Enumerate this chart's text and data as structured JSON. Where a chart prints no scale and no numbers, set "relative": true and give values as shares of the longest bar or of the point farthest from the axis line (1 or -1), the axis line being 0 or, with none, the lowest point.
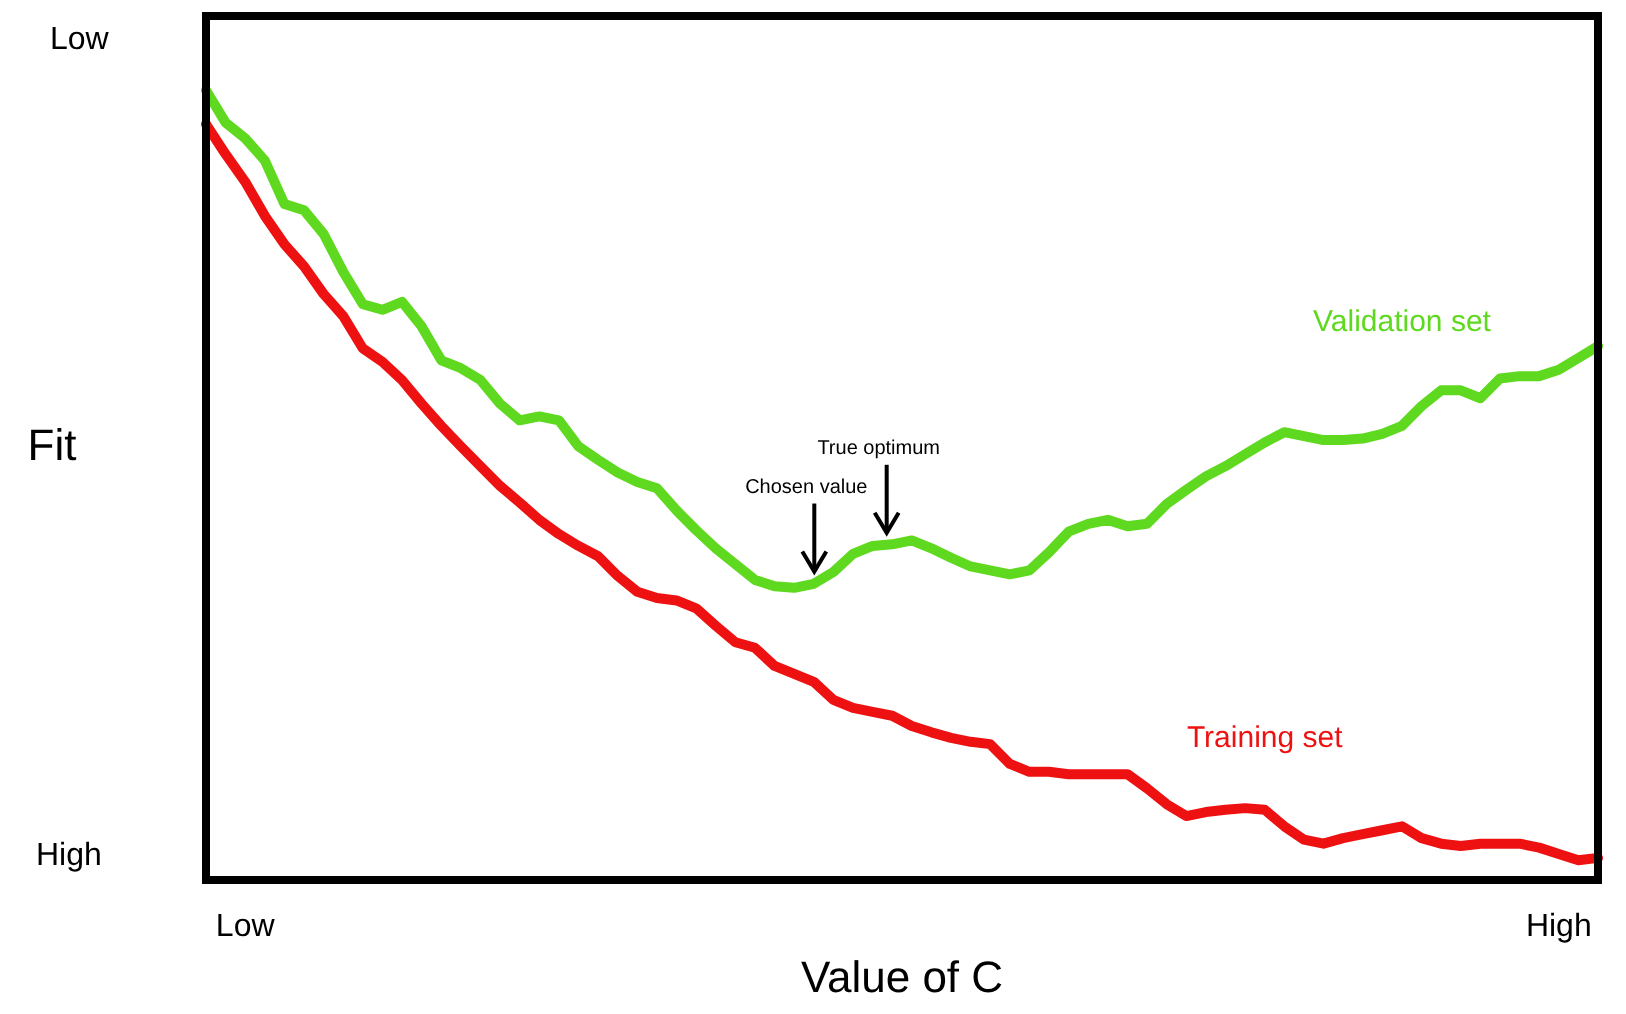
{
  "chart_data": {
    "type": "line",
    "xlabel": "Value of C",
    "ylabel": "Fit",
    "relative": true,
    "grid": false,
    "legend": false,
    "marker": "none",
    "line_style": "solid",
    "annotations": [
      "Low",
      "High",
      "Chosen value",
      "True optimum"
    ],
    "categories": [
      null,
      null,
      "Low",
      null,
      null,
      null,
      null,
      null,
      null,
      null,
      null,
      null,
      null,
      null,
      null,
      null,
      null,
      null,
      null,
      null,
      null,
      null,
      null,
      null,
      null,
      null,
      null,
      null,
      null,
      null,
      null,
      null,
      null,
      null,
      null,
      null,
      null,
      null,
      null,
      null,
      null,
      null,
      null,
      null,
      null,
      null,
      null,
      null,
      null,
      null,
      null,
      null,
      null,
      null,
      null,
      null,
      null,
      null,
      null,
      null,
      null,
      null,
      null,
      null,
      null,
      null,
      null,
      null,
      null,
      "High",
      null,
      null
    ],
    "series": [
      {
        "name": "Validation set",
        "color": "#5fd91f",
        "values": [
          1,
          0.959,
          0.939,
          0.911,
          0.856,
          0.848,
          0.818,
          0.77,
          0.729,
          0.722,
          0.732,
          0.701,
          0.658,
          0.648,
          0.633,
          0.603,
          0.582,
          0.587,
          0.582,
          0.549,
          0.532,
          0.516,
          0.504,
          0.496,
          0.468,
          0.443,
          0.42,
          0.4,
          0.38,
          0.372,
          0.37,
          0.375,
          0.39,
          0.413,
          0.423,
          0.425,
          0.43,
          0.42,
          0.408,
          0.397,
          0.392,
          0.387,
          0.392,
          0.415,
          0.441,
          0.451,
          0.456,
          0.448,
          0.451,
          0.476,
          0.494,
          0.511,
          0.524,
          0.539,
          0.554,
          0.567,
          0.562,
          0.557,
          0.557,
          0.559,
          0.565,
          0.575,
          0.6,
          0.62,
          0.62,
          0.61,
          0.635,
          0.638,
          0.638,
          0.646,
          0.661,
          0.676
        ]
      },
      {
        "name": "Training set",
        "color": "#ee1111",
        "values": [
          0.957,
          0.919,
          0.884,
          0.841,
          0.805,
          0.777,
          0.742,
          0.714,
          0.673,
          0.656,
          0.633,
          0.603,
          0.575,
          0.549,
          0.524,
          0.499,
          0.478,
          0.456,
          0.438,
          0.423,
          0.41,
          0.385,
          0.365,
          0.357,
          0.354,
          0.344,
          0.322,
          0.301,
          0.294,
          0.271,
          0.261,
          0.251,
          0.228,
          0.218,
          0.213,
          0.208,
          0.195,
          0.187,
          0.18,
          0.175,
          0.172,
          0.147,
          0.137,
          0.137,
          0.134,
          0.134,
          0.134,
          0.134,
          0.116,
          0.096,
          0.081,
          0.086,
          0.089,
          0.091,
          0.089,
          0.068,
          0.051,
          0.046,
          0.053,
          0.058,
          0.063,
          0.068,
          0.053,
          0.046,
          0.043,
          0.046,
          0.046,
          0.046,
          0.041,
          0.033,
          0.025,
          0.028
        ]
      }
    ]
  }
}
